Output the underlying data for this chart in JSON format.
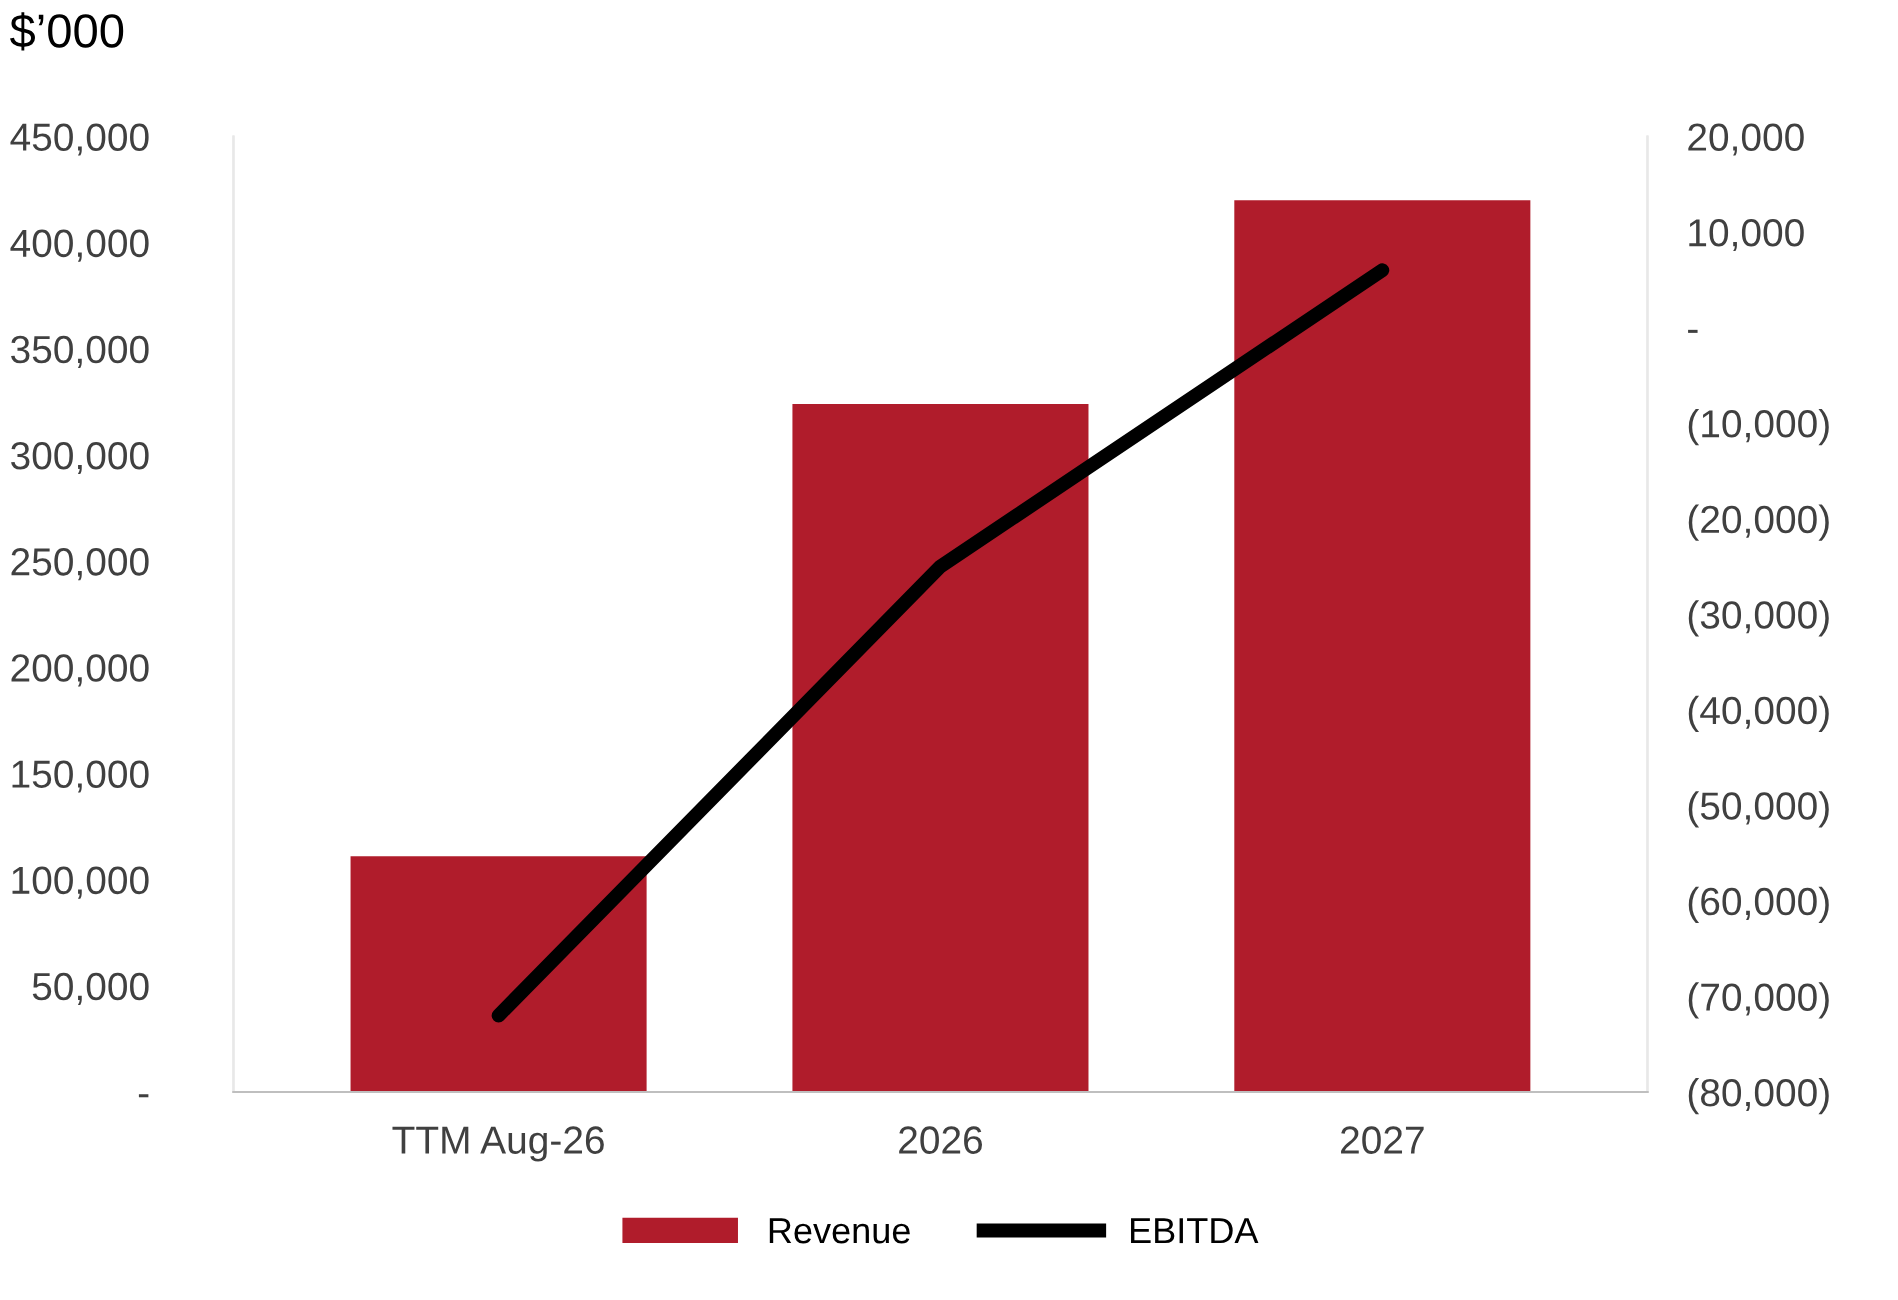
{
  "chart_data": {
    "type": "bar",
    "ylabel": "$’000",
    "categories": [
      "TTM Aug-26",
      "2026",
      "2027"
    ],
    "series": [
      {
        "name": "Revenue",
        "color": "#b01c2b",
        "values": [
          111000,
          324000,
          420000
        ]
      },
      {
        "name": "EBITDA",
        "type": "line",
        "color": "#000000",
        "axis": "y2",
        "values": [
          -72000,
          -25000,
          6000
        ]
      }
    ],
    "ylim": [
      0,
      450000
    ],
    "yticks": [
      {
        "value": 0,
        "label": "-"
      },
      {
        "value": 50000,
        "label": "50,000"
      },
      {
        "value": 100000,
        "label": "100,000"
      },
      {
        "value": 150000,
        "label": "150,000"
      },
      {
        "value": 200000,
        "label": "200,000"
      },
      {
        "value": 250000,
        "label": "250,000"
      },
      {
        "value": 300000,
        "label": "300,000"
      },
      {
        "value": 350000,
        "label": "350,000"
      },
      {
        "value": 400000,
        "label": "400,000"
      },
      {
        "value": 450000,
        "label": "450,000"
      }
    ],
    "y2lim": [
      -80000,
      20000
    ],
    "y2ticks": [
      {
        "value": -80000,
        "label": "(80,000)"
      },
      {
        "value": -70000,
        "label": "(70,000)"
      },
      {
        "value": -60000,
        "label": "(60,000)"
      },
      {
        "value": -50000,
        "label": "(50,000)"
      },
      {
        "value": -40000,
        "label": "(40,000)"
      },
      {
        "value": -30000,
        "label": "(30,000)"
      },
      {
        "value": -20000,
        "label": "(20,000)"
      },
      {
        "value": -10000,
        "label": "(10,000)"
      },
      {
        "value": 0,
        "label": "-"
      },
      {
        "value": 10000,
        "label": "10,000"
      },
      {
        "value": 20000,
        "label": "20,000"
      }
    ],
    "grid": false,
    "legend": "bottom",
    "marker": "none",
    "line_style": "solid"
  }
}
